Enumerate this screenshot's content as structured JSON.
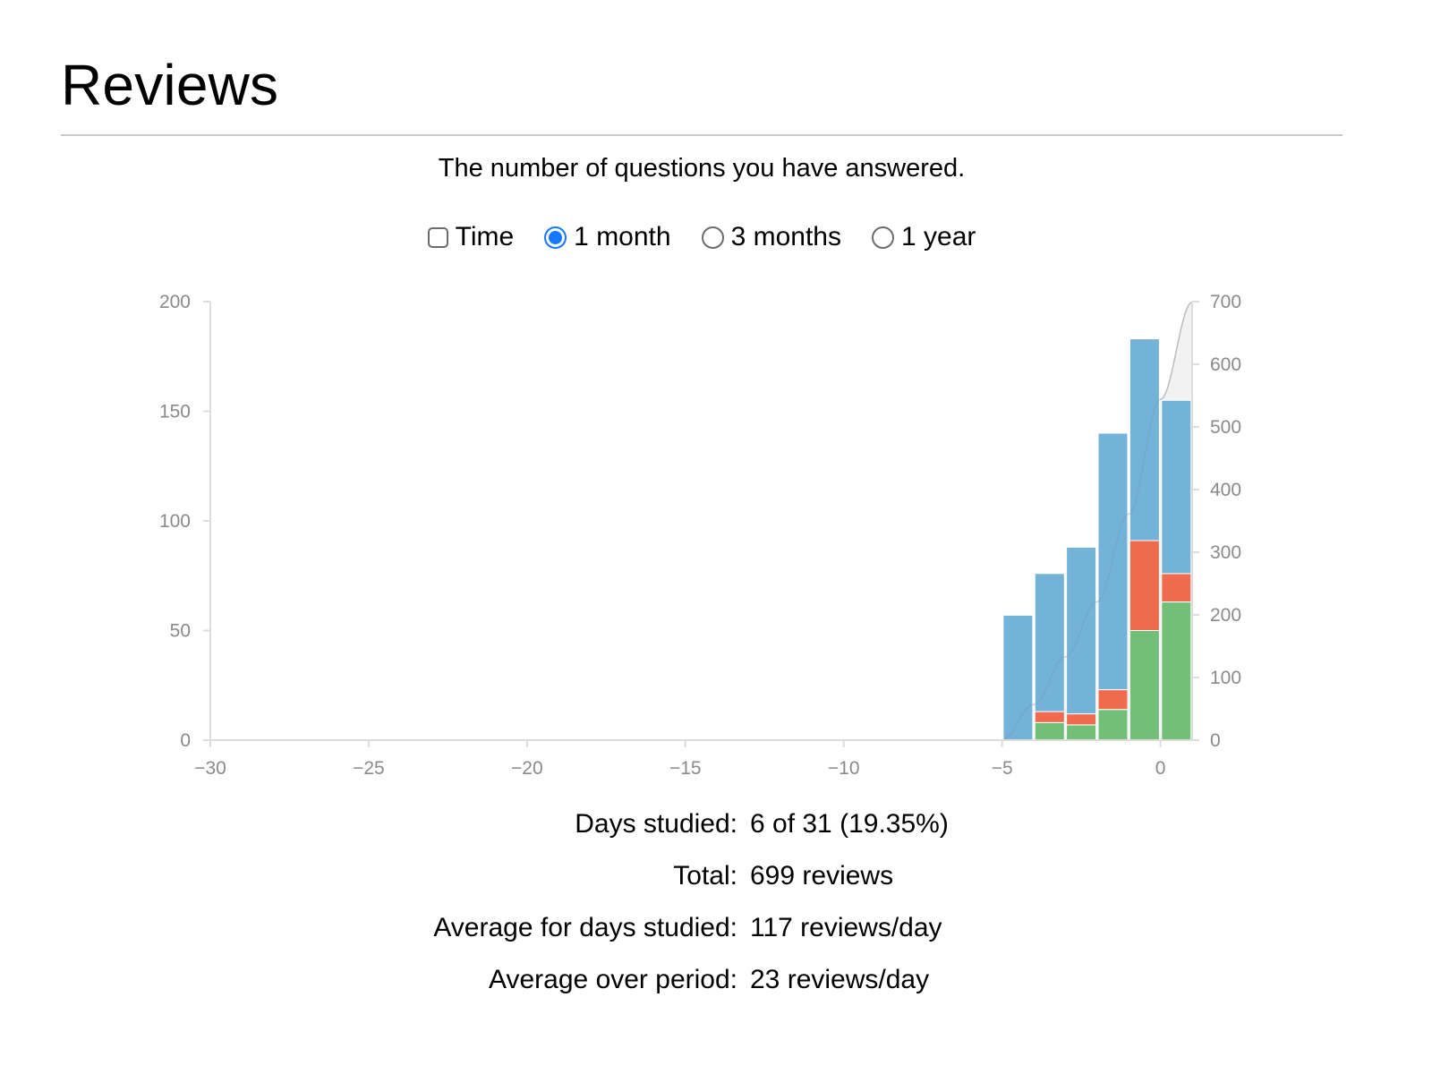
{
  "header": {
    "title": "Reviews"
  },
  "description": "The number of questions you have answered.",
  "controls": {
    "time_label": "Time",
    "time_checked": false,
    "range_options": [
      {
        "label": "1 month",
        "selected": true
      },
      {
        "label": "3 months",
        "selected": false
      },
      {
        "label": "1 year",
        "selected": false
      }
    ]
  },
  "colors": {
    "blue": "#74b3d9",
    "red": "#f06b4d",
    "green": "#72bf78",
    "cumulative_fill": "#f2f2f2",
    "cumulative_line": "#cfcfcf",
    "axis": "#dddddd"
  },
  "chart_data": {
    "type": "bar",
    "stacked": true,
    "x": [
      -5,
      -4,
      -3,
      -2,
      -1,
      0
    ],
    "x_ticks": [
      -30,
      -25,
      -20,
      -15,
      -10,
      -5,
      0
    ],
    "xlim": [
      -30,
      1
    ],
    "ylim_left": [
      0,
      200
    ],
    "y_ticks_left": [
      0,
      50,
      100,
      150,
      200
    ],
    "ylim_right": [
      0,
      700
    ],
    "y_ticks_right": [
      0,
      100,
      200,
      300,
      400,
      500,
      600,
      700
    ],
    "series": [
      {
        "color": "green",
        "values": [
          0,
          8,
          7,
          14,
          50,
          63
        ]
      },
      {
        "color": "red",
        "values": [
          0,
          5,
          5,
          9,
          41,
          13
        ]
      },
      {
        "color": "blue",
        "values": [
          57,
          63,
          76,
          117,
          92,
          79
        ]
      }
    ],
    "cumulative": {
      "axis": "right",
      "x": [
        -5,
        -4,
        -3,
        -2,
        -1,
        0,
        1
      ],
      "values": [
        0,
        57,
        133,
        221,
        361,
        544,
        699
      ]
    },
    "grid": false
  },
  "stats": [
    {
      "label": "Days studied:",
      "value": "6 of 31 (19.35%)"
    },
    {
      "label": "Total:",
      "value": "699 reviews"
    },
    {
      "label": "Average for days studied:",
      "value": "117 reviews/day"
    },
    {
      "label": "Average over period:",
      "value": "23 reviews/day"
    }
  ]
}
